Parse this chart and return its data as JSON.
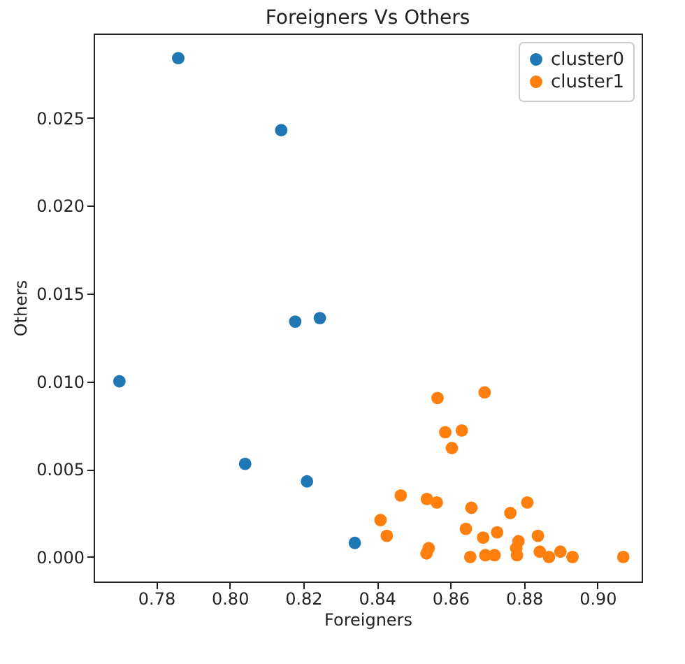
{
  "chart_data": {
    "type": "scatter",
    "title": "Foreigners Vs Others",
    "xlabel": "Foreigners",
    "ylabel": "Others",
    "xlim": [
      0.763,
      0.912
    ],
    "ylim": [
      -0.0014,
      0.0298
    ],
    "xticks": [
      {
        "value": 0.78,
        "label": "0.78"
      },
      {
        "value": 0.8,
        "label": "0.80"
      },
      {
        "value": 0.82,
        "label": "0.82"
      },
      {
        "value": 0.84,
        "label": "0.84"
      },
      {
        "value": 0.86,
        "label": "0.86"
      },
      {
        "value": 0.88,
        "label": "0.88"
      },
      {
        "value": 0.9,
        "label": "0.90"
      }
    ],
    "yticks": [
      {
        "value": 0,
        "label": "0.000"
      },
      {
        "value": 0.005,
        "label": "0.005"
      },
      {
        "value": 0.01,
        "label": "0.010"
      },
      {
        "value": 0.015,
        "label": "0.015"
      },
      {
        "value": 0.02,
        "label": "0.020"
      },
      {
        "value": 0.025,
        "label": "0.025"
      }
    ],
    "legend": "top right",
    "marker": "circle",
    "grid": false,
    "series": [
      {
        "name": "cluster0",
        "color": "#1f77b4",
        "x": [
          0.786,
          0.814,
          0.8178,
          0.8245,
          0.77,
          0.8042,
          0.821,
          0.834
        ],
        "values": [
          0.0284,
          0.0243,
          0.0134,
          0.0136,
          0.01,
          0.0053,
          0.0043,
          0.0008
        ]
      },
      {
        "name": "cluster1",
        "color": "#ff7f0e",
        "x": [
          0.8565,
          0.8693,
          0.8586,
          0.8631,
          0.8604,
          0.8465,
          0.8536,
          0.8563,
          0.8657,
          0.8763,
          0.8809,
          0.841,
          0.8427,
          0.8642,
          0.8689,
          0.8727,
          0.8785,
          0.8838,
          0.8541,
          0.8535,
          0.8654,
          0.8695,
          0.872,
          0.8779,
          0.8781,
          0.8843,
          0.8868,
          0.8899,
          0.8932,
          0.907
        ],
        "values": [
          0.00905,
          0.00937,
          0.0071,
          0.0072,
          0.0062,
          0.0035,
          0.0033,
          0.0031,
          0.0028,
          0.0025,
          0.0031,
          0.0021,
          0.0012,
          0.0016,
          0.0011,
          0.0014,
          0.0009,
          0.0012,
          0.0005,
          0.0002,
          0.0,
          0.0001,
          0.0001,
          0.0005,
          0.0001,
          0.0003,
          0.0,
          0.0003,
          0.0,
          0.0
        ]
      }
    ]
  }
}
